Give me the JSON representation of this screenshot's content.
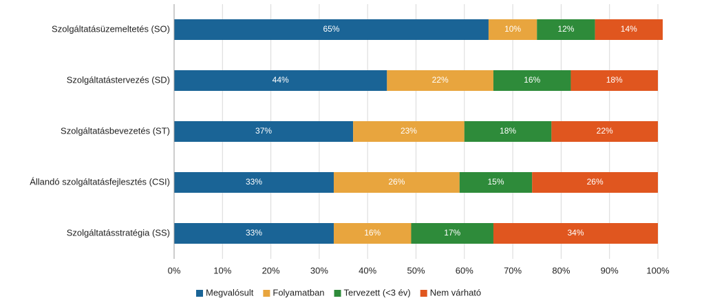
{
  "chart_data": {
    "type": "bar",
    "orientation": "horizontal",
    "stacked": true,
    "categories": [
      "Szolgáltatásüzemeltetés (SO)",
      "Szolgáltatástervezés (SD)",
      "Szolgáltatásbevezetés (ST)",
      "Állandó szolgáltatásfejlesztés (CSI)",
      "Szolgáltatásstratégia (SS)"
    ],
    "series": [
      {
        "name": "Megvalósult",
        "color": "#1a6496",
        "values": [
          65,
          44,
          37,
          33,
          33
        ],
        "value_labels": [
          "65%",
          "44%",
          "37%",
          "33%",
          "33%"
        ]
      },
      {
        "name": "Folyamatban",
        "color": "#e8a53e",
        "values": [
          10,
          22,
          23,
          26,
          16
        ],
        "value_labels": [
          "10%",
          "22%",
          "23%",
          "26%",
          "16%"
        ]
      },
      {
        "name": "Tervezett (<3 év)",
        "color": "#2e8b3a",
        "values": [
          12,
          16,
          18,
          15,
          17
        ],
        "value_labels": [
          "12%",
          "16%",
          "18%",
          "15%",
          "17%"
        ]
      },
      {
        "name": "Nem várható",
        "color": "#e0561f",
        "values": [
          14,
          18,
          22,
          26,
          34
        ],
        "value_labels": [
          "14%",
          "18%",
          "22%",
          "26%",
          "34%"
        ]
      }
    ],
    "xlim": [
      0,
      100
    ],
    "xticks": [
      {
        "value": 0,
        "label": "0%"
      },
      {
        "value": 10,
        "label": "10%"
      },
      {
        "value": 20,
        "label": "20%"
      },
      {
        "value": 30,
        "label": "30%"
      },
      {
        "value": 40,
        "label": "40%"
      },
      {
        "value": 50,
        "label": "50%"
      },
      {
        "value": 60,
        "label": "60%"
      },
      {
        "value": 70,
        "label": "70%"
      },
      {
        "value": 80,
        "label": "80%"
      },
      {
        "value": 90,
        "label": "90%"
      },
      {
        "value": 100,
        "label": "100%"
      }
    ],
    "grid": true,
    "legend": "bottom"
  }
}
